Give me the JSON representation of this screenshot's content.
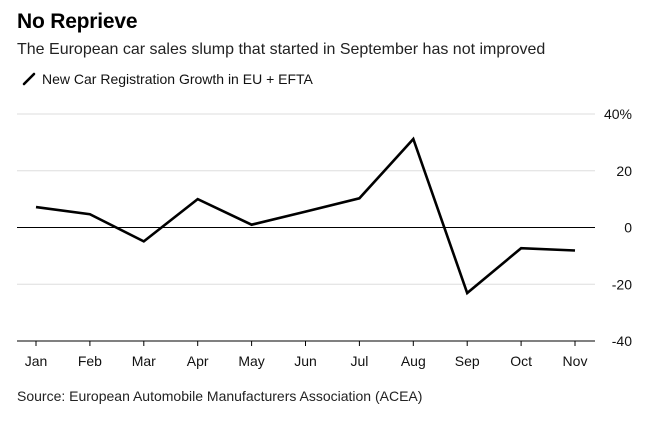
{
  "chart_data": {
    "type": "line",
    "title": "No Reprieve",
    "subtitle": "The European car sales slump that started in September has not improved",
    "source": "Source: European Automobile Manufacturers Association (ACEA)",
    "categories": [
      "Jan",
      "Feb",
      "Mar",
      "Apr",
      "May",
      "Jun",
      "Jul",
      "Aug",
      "Sep",
      "Oct",
      "Nov"
    ],
    "series": [
      {
        "name": "New Car Registration Growth in EU + EFTA",
        "values": [
          7.2,
          4.7,
          -4.9,
          10.0,
          1.0,
          5.6,
          10.3,
          31.2,
          -23.1,
          -7.3,
          -8.1
        ]
      }
    ],
    "y_ticks": [
      40,
      20,
      0,
      -20,
      -40
    ],
    "y_tick_labels": [
      "40%",
      "20",
      "0",
      "-20",
      "-40"
    ],
    "ylim": [
      -40,
      40
    ],
    "xlabel": "",
    "ylabel": "",
    "grid": true,
    "legend_position": "top-left",
    "colors": {
      "line": "#000000",
      "grid": "#dddddd",
      "zero_line": "#000000"
    }
  }
}
